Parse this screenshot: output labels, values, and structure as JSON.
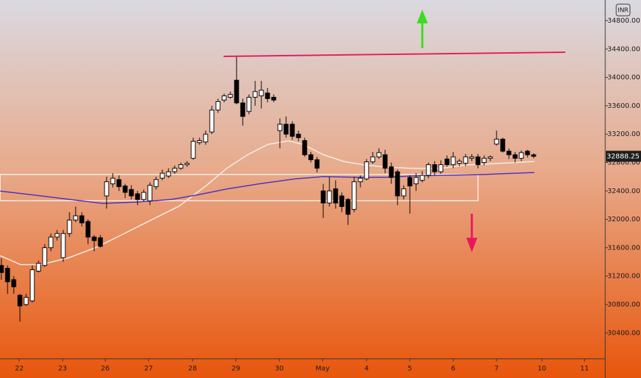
{
  "chart_data": {
    "type": "candlestick",
    "currency": "INR",
    "last_price": 32888.25,
    "up_color": "#ffffff",
    "down_color": "#000000",
    "xlim": [
      -0.22,
      97.56
    ],
    "ylim": [
      30055,
      35090
    ],
    "xticks": [
      {
        "value": 2.89,
        "label": "22"
      },
      {
        "value": 9.89,
        "label": "23"
      },
      {
        "value": 16.78,
        "label": "26"
      },
      {
        "value": 23.78,
        "label": "27"
      },
      {
        "value": 30.89,
        "label": "28"
      },
      {
        "value": 37.89,
        "label": "29"
      },
      {
        "value": 44.89,
        "label": "30"
      },
      {
        "value": 51.89,
        "label": "May"
      },
      {
        "value": 59,
        "label": "4"
      },
      {
        "value": 66,
        "label": "5"
      },
      {
        "value": 73,
        "label": "6"
      },
      {
        "value": 80,
        "label": "7"
      },
      {
        "value": 87.33,
        "label": "10"
      },
      {
        "value": 94.22,
        "label": "11"
      }
    ],
    "yticks": [
      {
        "value": 30400,
        "label": "30400.00"
      },
      {
        "value": 30800,
        "label": "30800.00"
      },
      {
        "value": 31200,
        "label": "31200.00"
      },
      {
        "value": 31600,
        "label": "31600.00"
      },
      {
        "value": 32000,
        "label": "32000.00"
      },
      {
        "value": 32400,
        "label": "32400.00"
      },
      {
        "value": 32800,
        "label": "32800.00"
      },
      {
        "value": 33200,
        "label": "33200.00"
      },
      {
        "value": 33600,
        "label": "33600.00"
      },
      {
        "value": 34000,
        "label": "34000.00"
      },
      {
        "value": 34400,
        "label": "34400.00"
      },
      {
        "value": 34800,
        "label": "34800.00"
      }
    ],
    "x": [
      0,
      1,
      2,
      3,
      4,
      5,
      6,
      7,
      8,
      9,
      10,
      11,
      12,
      13,
      14,
      15,
      16,
      17,
      18,
      19,
      20,
      21,
      22,
      23,
      24,
      25,
      26,
      27,
      28,
      29,
      30,
      31,
      32,
      33,
      34,
      35,
      36,
      37,
      38,
      39,
      40,
      41,
      42,
      43,
      44,
      45,
      46,
      47,
      48,
      49,
      50,
      51,
      52,
      53,
      54,
      55,
      56,
      57,
      58,
      59,
      60,
      61,
      62,
      63,
      64,
      65,
      66,
      67,
      68,
      69,
      70,
      71,
      72,
      73,
      74,
      75,
      76,
      77,
      78,
      79,
      80,
      81,
      82,
      83,
      84,
      85,
      86
    ],
    "open": [
      31350,
      31310,
      31150,
      30930,
      30800,
      30850,
      31270,
      31350,
      31600,
      31750,
      31460,
      31800,
      31990,
      32050,
      31970,
      31750,
      31740,
      32330,
      32500,
      32560,
      32470,
      32420,
      32360,
      32280,
      32260,
      32460,
      32580,
      32610,
      32670,
      32720,
      32770,
      32860,
      33080,
      33090,
      33230,
      33540,
      33680,
      33720,
      33960,
      33640,
      33520,
      33720,
      33740,
      33780,
      33720,
      33250,
      33340,
      33340,
      33200,
      33110,
      32910,
      32840,
      32400,
      32230,
      32430,
      32330,
      32280,
      32140,
      32530,
      32570,
      32810,
      32880,
      32910,
      32740,
      32670,
      32330,
      32590,
      32500,
      32550,
      32620,
      32770,
      32670,
      32850,
      32770,
      32790,
      32790,
      32860,
      32880,
      32800,
      32860,
      33060,
      33130,
      32960,
      32910,
      32860,
      32960,
      32910
    ],
    "high": [
      31450,
      31350,
      31200,
      30950,
      30950,
      31350,
      31420,
      31650,
      31800,
      31850,
      31850,
      32100,
      32180,
      32100,
      32000,
      31780,
      31780,
      32600,
      32650,
      32620,
      32500,
      32480,
      32400,
      32420,
      32520,
      32600,
      32700,
      32720,
      32760,
      32800,
      32820,
      33150,
      33150,
      33250,
      33600,
      33700,
      33770,
      33800,
      34290,
      33700,
      33760,
      33950,
      33950,
      33850,
      33760,
      33420,
      33450,
      33380,
      33250,
      33150,
      32950,
      32880,
      32500,
      32600,
      32550,
      32380,
      32300,
      32600,
      32620,
      32850,
      32950,
      33000,
      32980,
      32800,
      32700,
      32480,
      32620,
      32650,
      32680,
      32800,
      32820,
      32830,
      32900,
      32950,
      32850,
      32920,
      32920,
      32920,
      32900,
      32900,
      33250,
      33150,
      33000,
      32950,
      32970,
      32980,
      32930
    ],
    "low": [
      31150,
      30950,
      30950,
      30560,
      30780,
      30830,
      31250,
      31330,
      31550,
      31700,
      31400,
      31750,
      31960,
      31900,
      31650,
      31550,
      31600,
      32150,
      32450,
      32400,
      32300,
      32280,
      32200,
      32250,
      32200,
      32420,
      32550,
      32580,
      32640,
      32700,
      32740,
      32840,
      33050,
      33050,
      33200,
      33500,
      33650,
      33700,
      33620,
      33320,
      33480,
      33600,
      33560,
      33650,
      33650,
      33000,
      33150,
      33120,
      33100,
      32880,
      32800,
      32660,
      32020,
      32180,
      32150,
      32100,
      31920,
      32100,
      32450,
      32550,
      32780,
      32850,
      32650,
      32500,
      32200,
      32280,
      32080,
      32400,
      32520,
      32580,
      32620,
      32640,
      32740,
      32720,
      32750,
      32750,
      32820,
      32720,
      32760,
      32820,
      33040,
      32940,
      32850,
      32800,
      32820,
      32870,
      32860
    ],
    "close": [
      31250,
      31120,
      31050,
      30780,
      30900,
      31290,
      31380,
      31600,
      31750,
      31800,
      31800,
      31990,
      32050,
      31950,
      31750,
      31700,
      31620,
      32530,
      32580,
      32460,
      32380,
      32330,
      32280,
      32380,
      32480,
      32560,
      32650,
      32670,
      32720,
      32770,
      32790,
      33100,
      33110,
      33200,
      33540,
      33660,
      33740,
      33760,
      33640,
      33450,
      33720,
      33800,
      33820,
      33700,
      33680,
      33340,
      33200,
      33170,
      33150,
      32910,
      32840,
      32720,
      32230,
      32400,
      32230,
      32180,
      32070,
      32530,
      32580,
      32810,
      32880,
      32940,
      32720,
      32590,
      32330,
      32430,
      32470,
      32590,
      32620,
      32770,
      32670,
      32770,
      32770,
      32880,
      32820,
      32880,
      32880,
      32770,
      32860,
      32880,
      33130,
      32960,
      32910,
      32860,
      32940,
      32910,
      32888.25
    ],
    "moving_averages": [
      {
        "color": "#f6efe6",
        "x": [
          -0.2,
          3.1,
          6.4,
          10.9,
          15.3,
          19.8,
          24.2,
          28.7,
          33.1,
          36.4,
          39.8,
          43.1,
          46.4,
          48.7,
          52,
          55.3,
          58.7,
          62,
          66.4,
          70.9,
          75.3,
          79.8,
          86.1
        ],
        "values": [
          31488,
          31362,
          31362,
          31459,
          31604,
          31798,
          31991,
          32185,
          32476,
          32718,
          32911,
          33057,
          33105,
          33057,
          32911,
          32815,
          32766,
          32737,
          32718,
          32718,
          32766,
          32786,
          32815
        ]
      },
      {
        "color": "#4a2fc0",
        "x": [
          -0.2,
          6.4,
          10.9,
          16.4,
          22,
          27.6,
          32,
          36.4,
          42,
          47.6,
          52,
          57.6,
          62,
          66.4,
          72,
          77.6,
          86.1
        ],
        "values": [
          32398,
          32330,
          32282,
          32224,
          32243,
          32282,
          32350,
          32427,
          32505,
          32572,
          32602,
          32592,
          32592,
          32611,
          32621,
          32631,
          32660
        ]
      }
    ],
    "annotations": [
      {
        "shape": "line",
        "color": "#e8175d",
        "x": [
          35.9,
          91.1
        ],
        "y": [
          34296,
          34354
        ]
      },
      {
        "shape": "rect",
        "color": "#ffffff",
        "x": [
          -0.2,
          77
        ],
        "y": [
          32632,
          32263
        ]
      }
    ]
  }
}
